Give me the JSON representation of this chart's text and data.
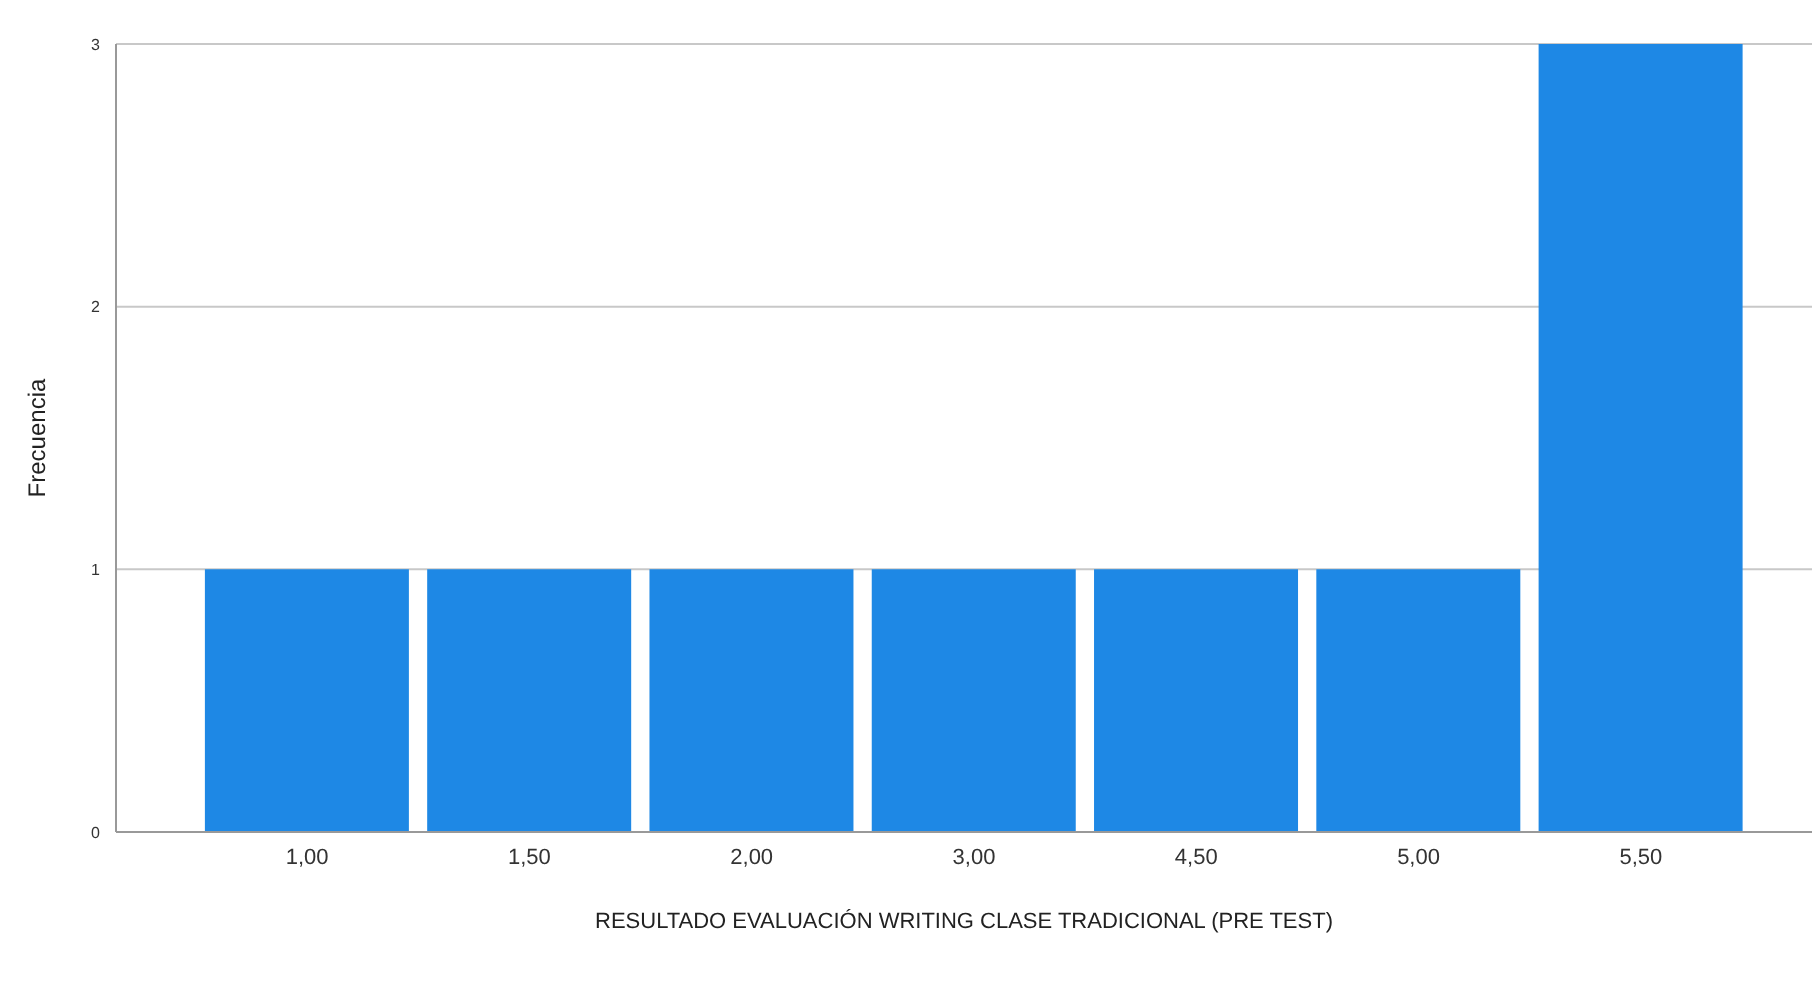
{
  "chart_data": {
    "type": "bar",
    "xlabel": "RESULTADO EVALUACIÓN WRITING CLASE TRADICIONAL (PRE TEST)",
    "ylabel": "Frecuencia",
    "categories": [
      "1,00",
      "1,50",
      "2,00",
      "3,00",
      "4,50",
      "5,00",
      "5,50"
    ],
    "values": [
      1,
      1,
      1,
      1,
      1,
      1,
      3
    ],
    "color": "#1e88e5",
    "ylim": [
      0,
      3
    ],
    "yticks": [
      0,
      1,
      2,
      3
    ],
    "grid": "y"
  }
}
